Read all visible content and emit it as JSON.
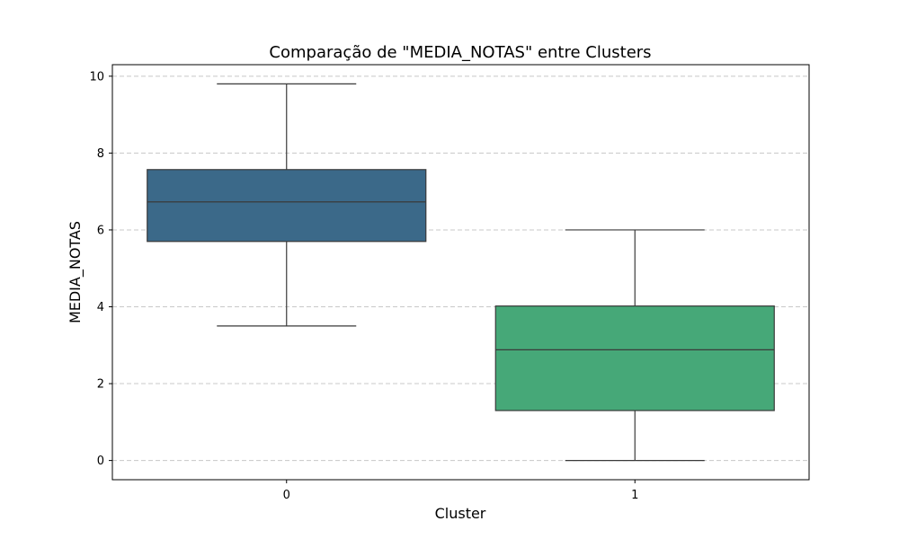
{
  "chart_data": {
    "type": "box",
    "title": "Comparação de \"MEDIA_NOTAS\" entre Clusters",
    "xlabel": "Cluster",
    "ylabel": "MEDIA_NOTAS",
    "categories": [
      "0",
      "1"
    ],
    "ylim": [
      -0.5,
      10.3
    ],
    "yticks": [
      0,
      2,
      4,
      6,
      8,
      10
    ],
    "grid": "y-dashed",
    "boxes": [
      {
        "category": "0",
        "whisker_low": 3.5,
        "q1": 5.7,
        "median": 6.73,
        "q3": 7.57,
        "whisker_high": 9.8,
        "color": "#3b6989"
      },
      {
        "category": "1",
        "whisker_low": 0.0,
        "q1": 1.3,
        "median": 2.88,
        "q3": 4.02,
        "whisker_high": 6.0,
        "color": "#46a878"
      }
    ]
  }
}
